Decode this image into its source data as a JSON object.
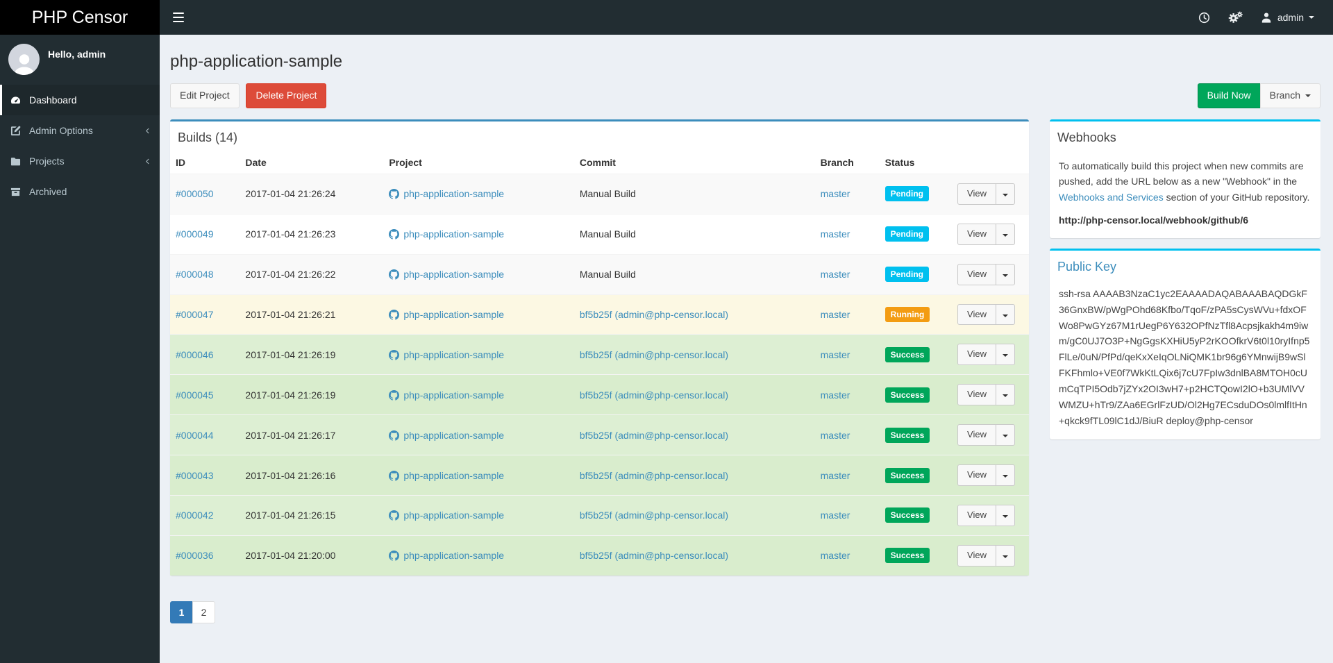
{
  "header": {
    "brand": "PHP Censor",
    "user": "admin"
  },
  "sidebar": {
    "greeting": "Hello, admin",
    "items": [
      {
        "label": "Dashboard",
        "active": true,
        "has_submenu": false
      },
      {
        "label": "Admin Options",
        "active": false,
        "has_submenu": true
      },
      {
        "label": "Projects",
        "active": false,
        "has_submenu": true
      },
      {
        "label": "Archived",
        "active": false,
        "has_submenu": false
      }
    ]
  },
  "page": {
    "title": "php-application-sample",
    "buttons": {
      "edit": "Edit Project",
      "delete": "Delete Project",
      "build_now": "Build Now",
      "branch": "Branch"
    }
  },
  "builds": {
    "title": "Builds (14)",
    "columns": [
      "ID",
      "Date",
      "Project",
      "Commit",
      "Branch",
      "Status",
      ""
    ],
    "view_label": "View",
    "rows": [
      {
        "id": "#000050",
        "date": "2017-01-04 21:26:24",
        "project": "php-application-sample",
        "commit": "Manual Build",
        "commit_is_link": false,
        "branch": "master",
        "status": "Pending",
        "status_color": "#00c0ef",
        "row_bg": "#f9f9f9"
      },
      {
        "id": "#000049",
        "date": "2017-01-04 21:26:23",
        "project": "php-application-sample",
        "commit": "Manual Build",
        "commit_is_link": false,
        "branch": "master",
        "status": "Pending",
        "status_color": "#00c0ef",
        "row_bg": "#ffffff"
      },
      {
        "id": "#000048",
        "date": "2017-01-04 21:26:22",
        "project": "php-application-sample",
        "commit": "Manual Build",
        "commit_is_link": false,
        "branch": "master",
        "status": "Pending",
        "status_color": "#00c0ef",
        "row_bg": "#f9f9f9"
      },
      {
        "id": "#000047",
        "date": "2017-01-04 21:26:21",
        "project": "php-application-sample",
        "commit": "bf5b25f (admin@php-censor.local)",
        "commit_is_link": true,
        "branch": "master",
        "status": "Running",
        "status_color": "#f39c12",
        "row_bg": "#fcf8e3"
      },
      {
        "id": "#000046",
        "date": "2017-01-04 21:26:19",
        "project": "php-application-sample",
        "commit": "bf5b25f (admin@php-censor.local)",
        "commit_is_link": true,
        "branch": "master",
        "status": "Success",
        "status_color": "#00a65a",
        "row_bg": "#ddefd3"
      },
      {
        "id": "#000045",
        "date": "2017-01-04 21:26:19",
        "project": "php-application-sample",
        "commit": "bf5b25f (admin@php-censor.local)",
        "commit_is_link": true,
        "branch": "master",
        "status": "Success",
        "status_color": "#00a65a",
        "row_bg": "#d9edcd"
      },
      {
        "id": "#000044",
        "date": "2017-01-04 21:26:17",
        "project": "php-application-sample",
        "commit": "bf5b25f (admin@php-censor.local)",
        "commit_is_link": true,
        "branch": "master",
        "status": "Success",
        "status_color": "#00a65a",
        "row_bg": "#ddefd3"
      },
      {
        "id": "#000043",
        "date": "2017-01-04 21:26:16",
        "project": "php-application-sample",
        "commit": "bf5b25f (admin@php-censor.local)",
        "commit_is_link": true,
        "branch": "master",
        "status": "Success",
        "status_color": "#00a65a",
        "row_bg": "#d9edcd"
      },
      {
        "id": "#000042",
        "date": "2017-01-04 21:26:15",
        "project": "php-application-sample",
        "commit": "bf5b25f (admin@php-censor.local)",
        "commit_is_link": true,
        "branch": "master",
        "status": "Success",
        "status_color": "#00a65a",
        "row_bg": "#ddefd3"
      },
      {
        "id": "#000036",
        "date": "2017-01-04 21:20:00",
        "project": "php-application-sample",
        "commit": "bf5b25f (admin@php-censor.local)",
        "commit_is_link": true,
        "branch": "master",
        "status": "Success",
        "status_color": "#00a65a",
        "row_bg": "#d9edcd"
      }
    ],
    "pagination": [
      {
        "label": "1",
        "active": true
      },
      {
        "label": "2",
        "active": false
      }
    ]
  },
  "webhooks": {
    "title": "Webhooks",
    "text_before_link": "To automatically build this project when new commits are pushed, add the URL below as a new \"Webhook\" in the ",
    "link": "Webhooks and Services",
    "text_after_link": " section of your GitHub repository.",
    "url": "http://php-censor.local/webhook/github/6"
  },
  "public_key": {
    "title": "Public Key",
    "key": "ssh-rsa AAAAB3NzaC1yc2EAAAADAQABAAABAQDGkF36GnxBW/pWgPOhd68Kfbo/TqoF/zPA5sCysWVu+fdxOFWo8PwGYz67M1rUegP6Y632OPfNzTfl8Acpsjkakh4m9iwm/gC0UJ7O3P+NgGgsKXHiU5yP2rKOOfkrV6t0l10ryIfnp5FlLe/0uN/PfPd/qeKxXeIqOLNiQMK1br96g6YMnwijB9wSlFKFhmlo+VE0f7WkKtLQix6j7cU7FpIw3dnlBA8MTOH0cUmCqTPI5Odb7jZYx2OI3wH7+p2HCTQowI2lO+b3UMlVVWMZU+hTr9/ZAa6EGrlFzUD/Ol2Hg7ECsduDOs0lmlfItHn+qkck9fTL09lC1dJ/BiuR deploy@php-censor"
  },
  "colors": {
    "accent": "#3c8dbc",
    "info": "#00c0ef",
    "success": "#00a65a",
    "warning": "#f39c12",
    "danger": "#dd4b39",
    "pagination_active": "#337ab7"
  }
}
